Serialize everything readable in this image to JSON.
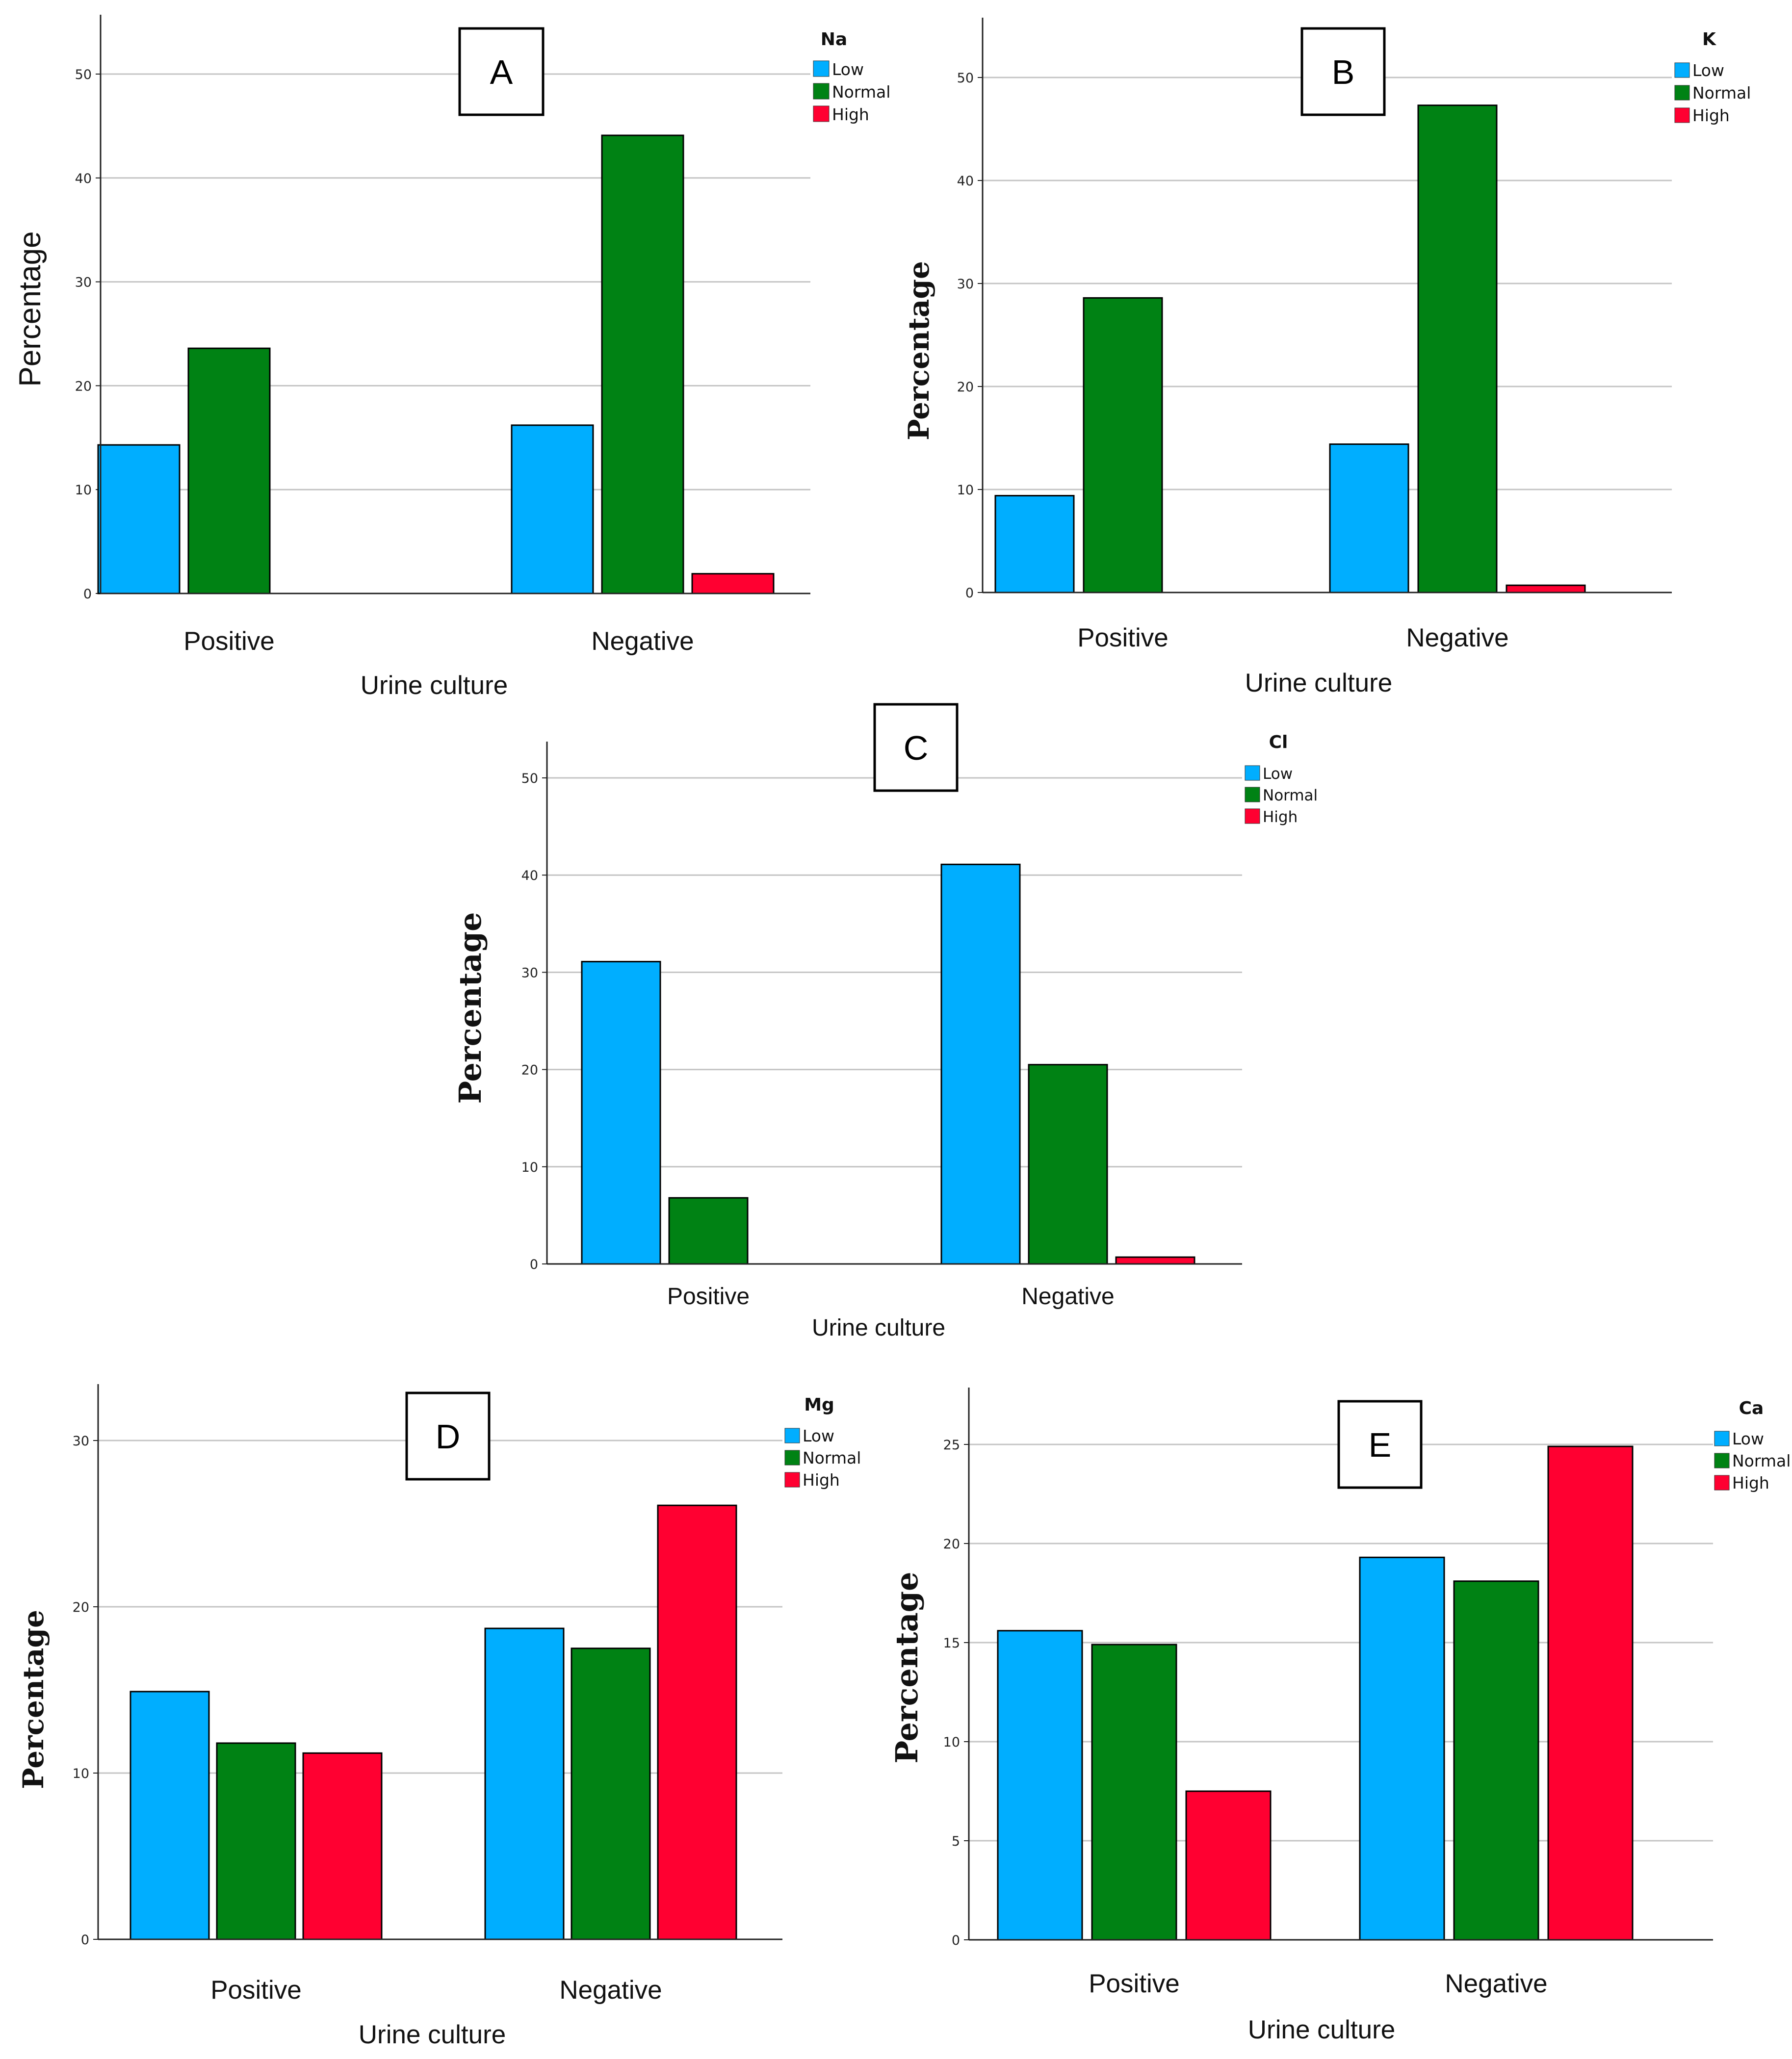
{
  "colors": {
    "Low": "#00aeff",
    "Normal": "#008214",
    "High": "#ff0031",
    "grid": "#c4c4c4",
    "axis": "#222222"
  },
  "chart_data": [
    {
      "panel": "A",
      "type": "bar",
      "legend_title": "Na",
      "legend_placement": "top-right",
      "series_names": [
        "Low",
        "Normal",
        "High"
      ],
      "categories": [
        "Positive",
        "Negative"
      ],
      "series": [
        {
          "name": "Low",
          "values": [
            14.3,
            16.2
          ]
        },
        {
          "name": "Normal",
          "values": [
            23.6,
            44.1
          ]
        },
        {
          "name": "High",
          "values": [
            0,
            1.9
          ]
        }
      ],
      "ylabel": "Percentage",
      "xlabel": "Urine culture",
      "ylim": [
        0,
        55
      ],
      "yticks": [
        0,
        10,
        20,
        30,
        40,
        50
      ],
      "grid": true
    },
    {
      "panel": "B",
      "type": "bar",
      "legend_title": "K",
      "legend_placement": "top-right",
      "series_names": [
        "Low",
        "Normal",
        "High"
      ],
      "categories": [
        "Positive",
        "Negative"
      ],
      "series": [
        {
          "name": "Low",
          "values": [
            9.4,
            14.4
          ]
        },
        {
          "name": "Normal",
          "values": [
            28.6,
            47.3
          ]
        },
        {
          "name": "High",
          "values": [
            0,
            0.7
          ]
        }
      ],
      "ylabel": "Percentage",
      "xlabel": "Urine culture",
      "ylim": [
        0,
        55
      ],
      "yticks": [
        0,
        10,
        20,
        30,
        40,
        50
      ],
      "grid": true
    },
    {
      "panel": "C",
      "type": "bar",
      "legend_title": "Cl",
      "legend_placement": "top-right",
      "series_names": [
        "Low",
        "Normal",
        "High"
      ],
      "categories": [
        "Positive",
        "Negative"
      ],
      "series": [
        {
          "name": "Low",
          "values": [
            31.1,
            41.1
          ]
        },
        {
          "name": "Normal",
          "values": [
            6.8,
            20.5
          ]
        },
        {
          "name": "High",
          "values": [
            0,
            0.7
          ]
        }
      ],
      "ylabel": "Percentage",
      "xlabel": "Urine culture",
      "ylim": [
        0,
        54
      ],
      "yticks": [
        0,
        10,
        20,
        30,
        40,
        50
      ],
      "grid": true
    },
    {
      "panel": "D",
      "type": "bar",
      "legend_title": "Mg",
      "legend_placement": "top-right",
      "series_names": [
        "Low",
        "Normal",
        "High"
      ],
      "categories": [
        "Positive",
        "Negative"
      ],
      "series": [
        {
          "name": "Low",
          "values": [
            14.9,
            18.7
          ]
        },
        {
          "name": "Normal",
          "values": [
            11.8,
            17.5
          ]
        },
        {
          "name": "High",
          "values": [
            11.2,
            26.1
          ]
        }
      ],
      "ylabel": "Percentage",
      "xlabel": "Urine culture",
      "ylim": [
        0,
        33.5
      ],
      "yticks": [
        0,
        10,
        20,
        30
      ],
      "grid": true
    },
    {
      "panel": "E",
      "type": "bar",
      "legend_title": "Ca",
      "legend_placement": "top-right",
      "series_names": [
        "Low",
        "Normal",
        "High"
      ],
      "categories": [
        "Positive",
        "Negative"
      ],
      "series": [
        {
          "name": "Low",
          "values": [
            15.6,
            19.3
          ]
        },
        {
          "name": "Normal",
          "values": [
            14.9,
            18.1
          ]
        },
        {
          "name": "High",
          "values": [
            7.5,
            24.9
          ]
        }
      ],
      "ylabel": "Percentage",
      "xlabel": "Urine culture",
      "ylim": [
        0,
        27.8
      ],
      "yticks": [
        0,
        5,
        10,
        15,
        20,
        25
      ],
      "grid": true
    }
  ]
}
